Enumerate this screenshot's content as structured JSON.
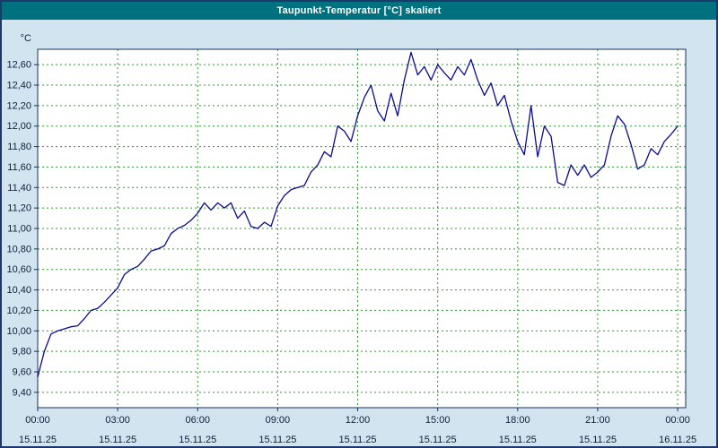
{
  "window": {
    "title": "Taupunkt-Temperatur [°C] skaliert"
  },
  "colors": {
    "titlebar": "#00717f",
    "background": "#d2e4f0",
    "border": "#1b3a6a",
    "grid": "#2e9b2e",
    "axis": "#16325c",
    "line": "#0b0b8f",
    "label": "#0b1f3a"
  },
  "chart_data": {
    "type": "line",
    "title": "Taupunkt-Temperatur [°C] skaliert",
    "y_unit_label": "°C",
    "xlabel": "",
    "ylabel": "Taupunkt-Temperatur",
    "ylim": [
      9.25,
      12.75
    ],
    "xlim_hours": [
      0,
      24.3
    ],
    "grid": true,
    "legend": "none",
    "y_ticks": [
      9.4,
      9.6,
      9.8,
      10.0,
      10.2,
      10.4,
      10.6,
      10.8,
      11.0,
      11.2,
      11.4,
      11.6,
      11.8,
      12.0,
      12.2,
      12.4,
      12.6
    ],
    "y_tick_labels": [
      "9,40",
      "9,60",
      "9,80",
      "10,00",
      "10,20",
      "10,40",
      "10,60",
      "10,80",
      "11,00",
      "11,20",
      "11,40",
      "11,60",
      "11,80",
      "12,00",
      "12,20",
      "12,40",
      "12,60"
    ],
    "x_ticks_hours": [
      0,
      3,
      6,
      9,
      12,
      15,
      18,
      21,
      24
    ],
    "x_tick_labels": [
      "00:00",
      "03:00",
      "06:00",
      "09:00",
      "12:00",
      "15:00",
      "18:00",
      "21:00",
      "00:00"
    ],
    "x_date_labels": [
      "15.11.25",
      "15.11.25",
      "15.11.25",
      "15.11.25",
      "15.11.25",
      "15.11.25",
      "15.11.25",
      "15.11.25",
      "16.11.25"
    ],
    "series": [
      {
        "name": "Taupunkt-Temperatur",
        "color": "#0b0b8f",
        "points": [
          [
            0.0,
            9.55
          ],
          [
            0.25,
            9.8
          ],
          [
            0.5,
            9.97
          ],
          [
            0.75,
            10.0
          ],
          [
            1.0,
            10.02
          ],
          [
            1.25,
            10.04
          ],
          [
            1.5,
            10.05
          ],
          [
            1.75,
            10.12
          ],
          [
            2.0,
            10.2
          ],
          [
            2.25,
            10.22
          ],
          [
            2.5,
            10.28
          ],
          [
            2.75,
            10.35
          ],
          [
            3.0,
            10.42
          ],
          [
            3.25,
            10.55
          ],
          [
            3.5,
            10.6
          ],
          [
            3.75,
            10.63
          ],
          [
            4.0,
            10.7
          ],
          [
            4.25,
            10.78
          ],
          [
            4.5,
            10.8
          ],
          [
            4.75,
            10.83
          ],
          [
            5.0,
            10.95
          ],
          [
            5.25,
            11.0
          ],
          [
            5.5,
            11.03
          ],
          [
            5.75,
            11.08
          ],
          [
            6.0,
            11.15
          ],
          [
            6.25,
            11.25
          ],
          [
            6.5,
            11.18
          ],
          [
            6.75,
            11.25
          ],
          [
            7.0,
            11.2
          ],
          [
            7.25,
            11.25
          ],
          [
            7.5,
            11.1
          ],
          [
            7.75,
            11.17
          ],
          [
            8.0,
            11.02
          ],
          [
            8.25,
            11.0
          ],
          [
            8.5,
            11.06
          ],
          [
            8.75,
            11.02
          ],
          [
            9.0,
            11.22
          ],
          [
            9.25,
            11.32
          ],
          [
            9.5,
            11.38
          ],
          [
            9.75,
            11.4
          ],
          [
            10.0,
            11.42
          ],
          [
            10.25,
            11.55
          ],
          [
            10.5,
            11.62
          ],
          [
            10.75,
            11.75
          ],
          [
            11.0,
            11.7
          ],
          [
            11.25,
            12.0
          ],
          [
            11.5,
            11.95
          ],
          [
            11.75,
            11.85
          ],
          [
            12.0,
            12.1
          ],
          [
            12.25,
            12.28
          ],
          [
            12.5,
            12.4
          ],
          [
            12.75,
            12.15
          ],
          [
            13.0,
            12.05
          ],
          [
            13.25,
            12.32
          ],
          [
            13.5,
            12.1
          ],
          [
            13.75,
            12.45
          ],
          [
            14.0,
            12.72
          ],
          [
            14.25,
            12.5
          ],
          [
            14.5,
            12.58
          ],
          [
            14.75,
            12.45
          ],
          [
            15.0,
            12.6
          ],
          [
            15.25,
            12.52
          ],
          [
            15.5,
            12.45
          ],
          [
            15.75,
            12.58
          ],
          [
            16.0,
            12.5
          ],
          [
            16.25,
            12.65
          ],
          [
            16.5,
            12.45
          ],
          [
            16.75,
            12.3
          ],
          [
            17.0,
            12.42
          ],
          [
            17.25,
            12.2
          ],
          [
            17.5,
            12.3
          ],
          [
            17.75,
            12.05
          ],
          [
            18.0,
            11.85
          ],
          [
            18.25,
            11.72
          ],
          [
            18.5,
            12.2
          ],
          [
            18.75,
            11.7
          ],
          [
            19.0,
            12.0
          ],
          [
            19.25,
            11.9
          ],
          [
            19.5,
            11.45
          ],
          [
            19.75,
            11.42
          ],
          [
            20.0,
            11.62
          ],
          [
            20.25,
            11.52
          ],
          [
            20.5,
            11.62
          ],
          [
            20.75,
            11.5
          ],
          [
            21.0,
            11.55
          ],
          [
            21.25,
            11.62
          ],
          [
            21.5,
            11.9
          ],
          [
            21.75,
            12.1
          ],
          [
            22.0,
            12.02
          ],
          [
            22.25,
            11.82
          ],
          [
            22.5,
            11.58
          ],
          [
            22.75,
            11.62
          ],
          [
            23.0,
            11.78
          ],
          [
            23.25,
            11.72
          ],
          [
            23.5,
            11.85
          ],
          [
            23.75,
            11.92
          ],
          [
            24.0,
            12.0
          ]
        ]
      }
    ]
  }
}
